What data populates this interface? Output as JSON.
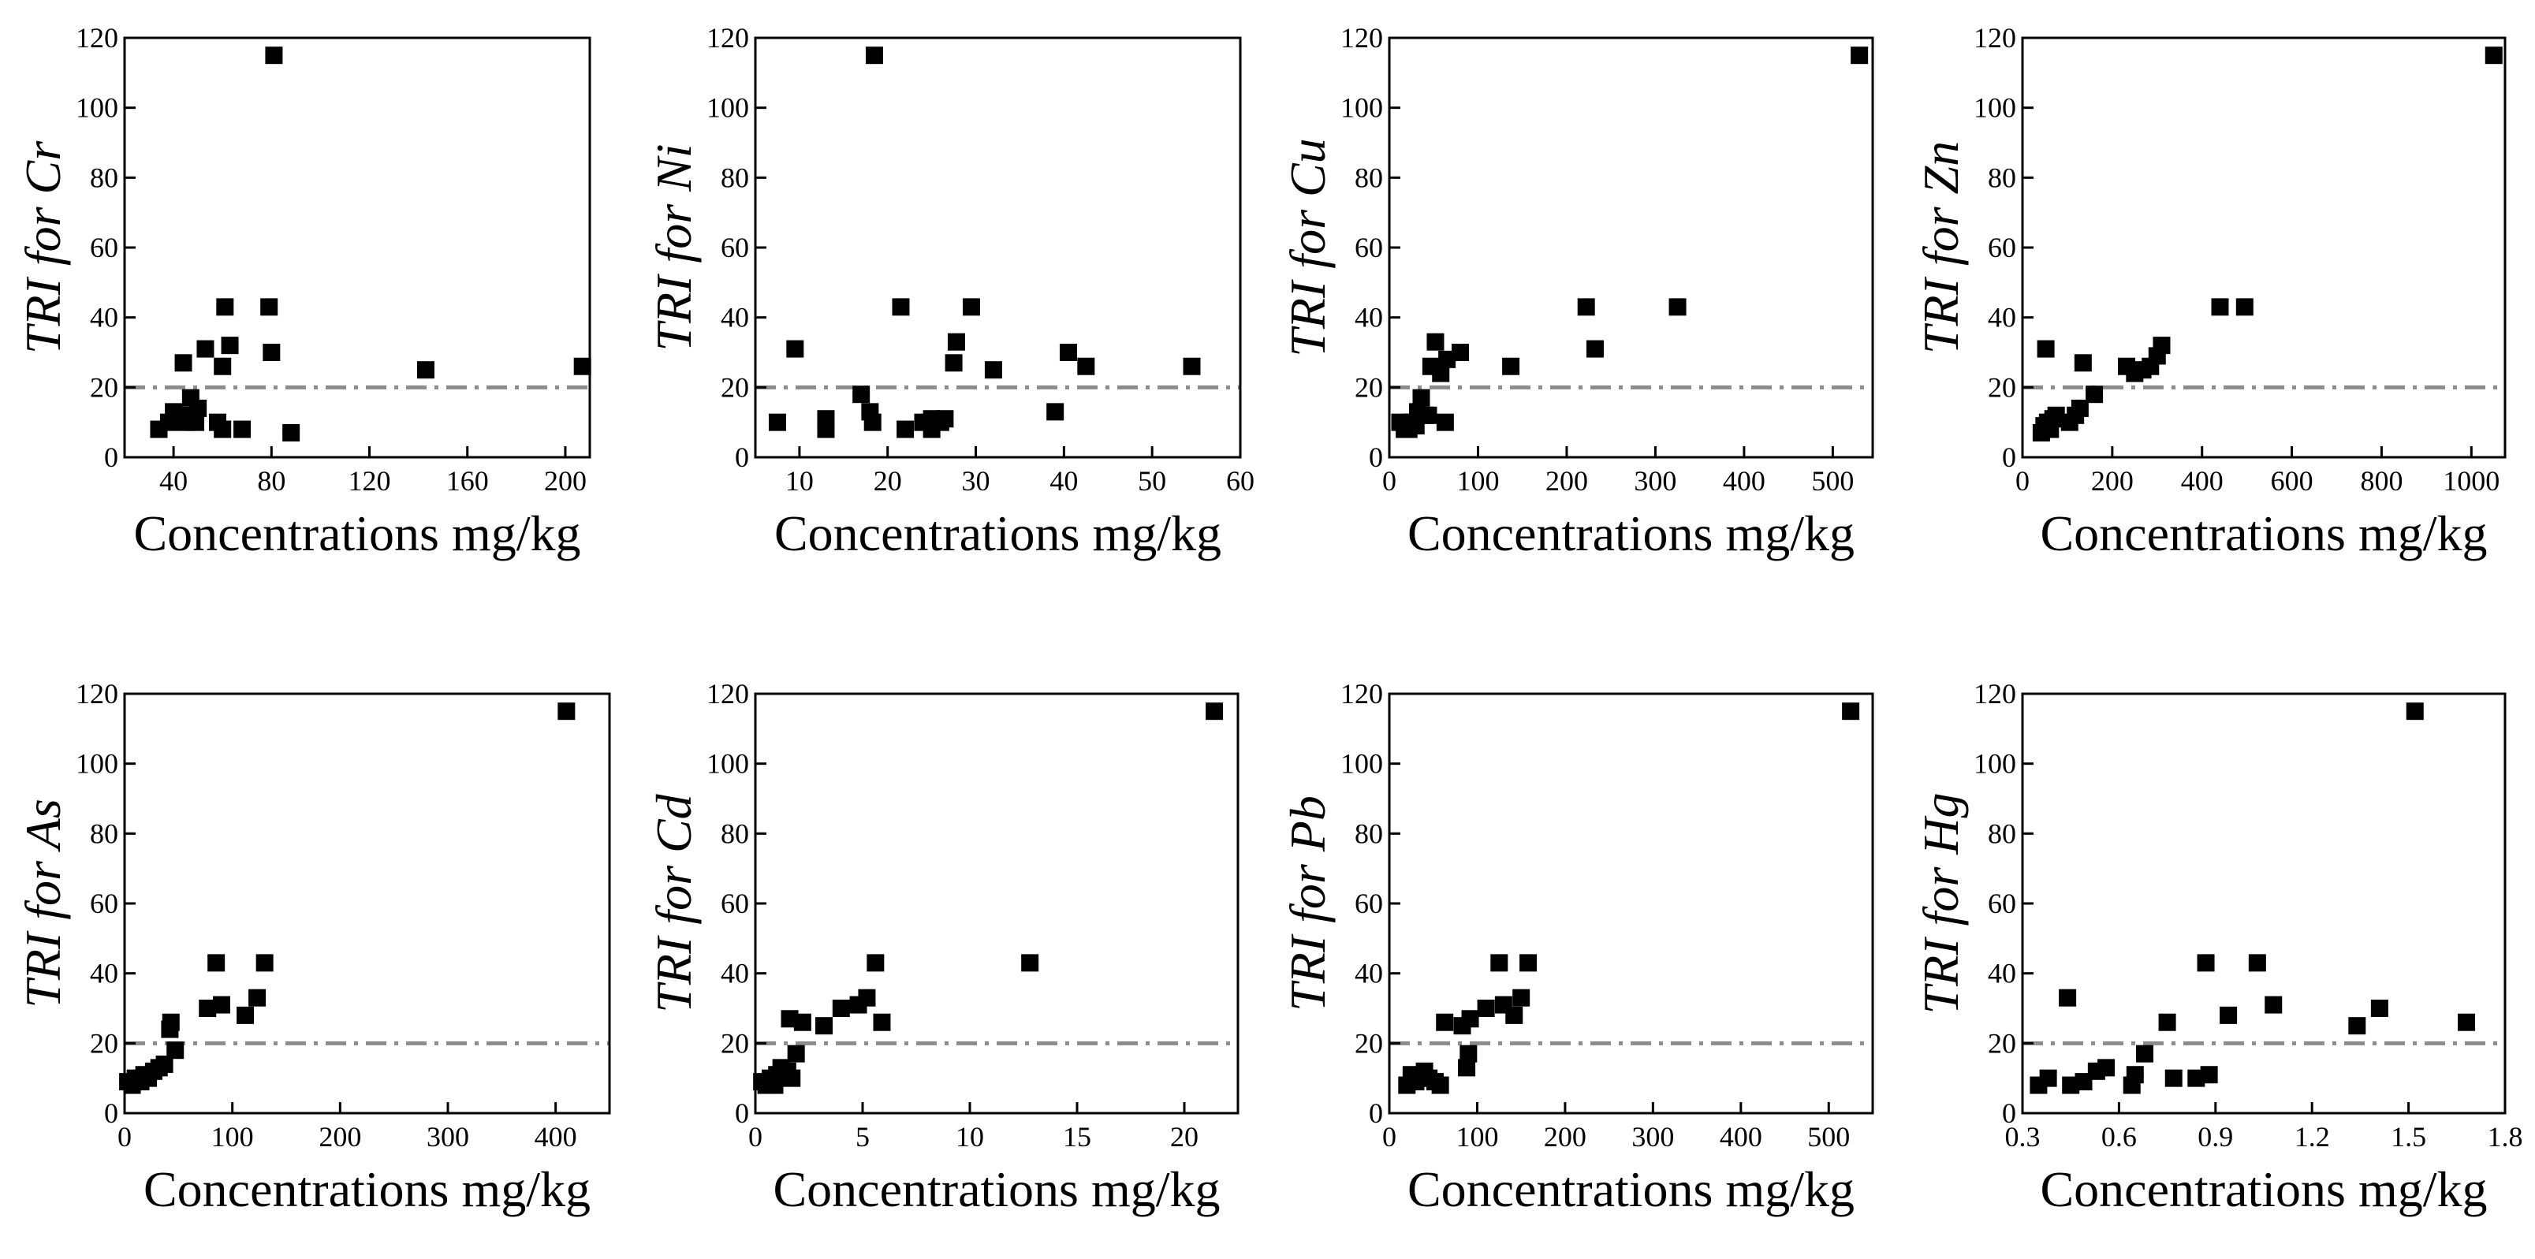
{
  "chart_data": [
    {
      "type": "scatter",
      "title": "",
      "xlabel": "Concentrations mg/kg",
      "ylabel": "TRI for Cr",
      "xlim": [
        20,
        210
      ],
      "xticks": [
        "40",
        "80",
        "120",
        "160",
        "200"
      ],
      "ylim": [
        0,
        120
      ],
      "yticks": [
        "0",
        "20",
        "40",
        "60",
        "80",
        "100",
        "120"
      ],
      "threshold": 20,
      "points": [
        [
          34,
          8
        ],
        [
          38,
          10
        ],
        [
          40,
          13
        ],
        [
          42,
          11
        ],
        [
          44,
          27
        ],
        [
          45,
          10
        ],
        [
          46,
          12
        ],
        [
          47,
          17
        ],
        [
          49,
          10
        ],
        [
          50,
          14
        ],
        [
          53,
          31
        ],
        [
          58,
          10
        ],
        [
          60,
          8
        ],
        [
          60,
          26
        ],
        [
          61,
          43
        ],
        [
          63,
          32
        ],
        [
          68,
          8
        ],
        [
          79,
          43
        ],
        [
          80,
          30
        ],
        [
          81,
          115
        ],
        [
          88,
          7
        ],
        [
          143,
          25
        ],
        [
          207,
          26
        ]
      ]
    },
    {
      "type": "scatter",
      "title": "",
      "xlabel": "Concentrations mg/kg",
      "ylabel": "TRI for Ni",
      "xlim": [
        5,
        60
      ],
      "xticks": [
        "10",
        "20",
        "30",
        "40",
        "50",
        "60"
      ],
      "ylim": [
        0,
        120
      ],
      "yticks": [
        "0",
        "20",
        "40",
        "60",
        "80",
        "100",
        "120"
      ],
      "threshold": 20,
      "points": [
        [
          7.5,
          10
        ],
        [
          9.5,
          31
        ],
        [
          13,
          8
        ],
        [
          13,
          11
        ],
        [
          17,
          18
        ],
        [
          18,
          13
        ],
        [
          18.3,
          10
        ],
        [
          18.5,
          115
        ],
        [
          21.5,
          43
        ],
        [
          22,
          8
        ],
        [
          24,
          10
        ],
        [
          25,
          8
        ],
        [
          25,
          11
        ],
        [
          26,
          10
        ],
        [
          26.5,
          11
        ],
        [
          27.5,
          27
        ],
        [
          27.8,
          33
        ],
        [
          29.5,
          43
        ],
        [
          32,
          25
        ],
        [
          39,
          13
        ],
        [
          40.5,
          30
        ],
        [
          42.5,
          26
        ],
        [
          54.5,
          26
        ]
      ]
    },
    {
      "type": "scatter",
      "title": "",
      "xlabel": "Concentrations mg/kg",
      "ylabel": "TRI for Cu",
      "xlim": [
        0,
        545
      ],
      "xticks": [
        "0",
        "100",
        "200",
        "300",
        "400",
        "500"
      ],
      "ylim": [
        0,
        120
      ],
      "yticks": [
        "0",
        "20",
        "40",
        "60",
        "80",
        "100",
        "120"
      ],
      "threshold": 20,
      "points": [
        [
          12,
          10
        ],
        [
          17,
          8
        ],
        [
          22,
          8
        ],
        [
          26,
          10
        ],
        [
          30,
          9
        ],
        [
          32,
          13
        ],
        [
          36,
          17
        ],
        [
          40,
          12
        ],
        [
          44,
          12
        ],
        [
          47,
          26
        ],
        [
          52,
          33
        ],
        [
          58,
          24
        ],
        [
          63,
          10
        ],
        [
          65,
          28
        ],
        [
          80,
          30
        ],
        [
          137,
          26
        ],
        [
          222,
          43
        ],
        [
          232,
          31
        ],
        [
          325,
          43
        ],
        [
          530,
          115
        ]
      ]
    },
    {
      "type": "scatter",
      "title": "",
      "xlabel": "Concentrations mg/kg",
      "ylabel": "TRI for Zn",
      "xlim": [
        0,
        1075
      ],
      "xticks": [
        "0",
        "200",
        "400",
        "600",
        "800",
        "1000"
      ],
      "ylim": [
        0,
        120
      ],
      "yticks": [
        "0",
        "20",
        "40",
        "60",
        "80",
        "100",
        "120"
      ],
      "threshold": 20,
      "points": [
        [
          42,
          7
        ],
        [
          48,
          9
        ],
        [
          52,
          31
        ],
        [
          56,
          10
        ],
        [
          62,
          8
        ],
        [
          68,
          11
        ],
        [
          75,
          12
        ],
        [
          105,
          10
        ],
        [
          118,
          12
        ],
        [
          128,
          14
        ],
        [
          135,
          27
        ],
        [
          160,
          18
        ],
        [
          232,
          26
        ],
        [
          250,
          24
        ],
        [
          268,
          25
        ],
        [
          285,
          26
        ],
        [
          300,
          29
        ],
        [
          310,
          32
        ],
        [
          440,
          43
        ],
        [
          495,
          43
        ],
        [
          1050,
          115
        ]
      ]
    },
    {
      "type": "scatter",
      "title": "",
      "xlabel": "Concentrations mg/kg",
      "ylabel": "TRI for As",
      "xlim": [
        0,
        450
      ],
      "xticks": [
        "0",
        "100",
        "200",
        "300",
        "400"
      ],
      "ylim": [
        0,
        120
      ],
      "yticks": [
        "0",
        "20",
        "40",
        "60",
        "80",
        "100",
        "120"
      ],
      "threshold": 20,
      "points": [
        [
          3,
          9
        ],
        [
          7,
          8
        ],
        [
          10,
          10
        ],
        [
          15,
          9
        ],
        [
          18,
          11
        ],
        [
          22,
          10
        ],
        [
          27,
          12
        ],
        [
          32,
          13
        ],
        [
          37,
          14
        ],
        [
          42,
          24
        ],
        [
          43,
          26
        ],
        [
          47,
          18
        ],
        [
          77,
          30
        ],
        [
          85,
          43
        ],
        [
          90,
          31
        ],
        [
          112,
          28
        ],
        [
          123,
          33
        ],
        [
          130,
          43
        ],
        [
          410,
          115
        ]
      ]
    },
    {
      "type": "scatter",
      "title": "",
      "xlabel": "Concentrations mg/kg",
      "ylabel": "TRI for Cd",
      "xlim": [
        0,
        22.5
      ],
      "xticks": [
        "0",
        "5",
        "10",
        "15",
        "20"
      ],
      "ylim": [
        0,
        120
      ],
      "yticks": [
        "0",
        "20",
        "40",
        "60",
        "80",
        "100",
        "120"
      ],
      "threshold": 20,
      "points": [
        [
          0.3,
          9
        ],
        [
          0.5,
          8
        ],
        [
          0.7,
          10
        ],
        [
          0.9,
          8
        ],
        [
          1.0,
          11
        ],
        [
          1.2,
          13
        ],
        [
          1.5,
          12
        ],
        [
          1.6,
          27
        ],
        [
          1.7,
          10
        ],
        [
          1.9,
          17
        ],
        [
          2.2,
          26
        ],
        [
          3.2,
          25
        ],
        [
          4.0,
          30
        ],
        [
          4.8,
          31
        ],
        [
          5.2,
          33
        ],
        [
          5.6,
          43
        ],
        [
          5.9,
          26
        ],
        [
          12.8,
          43
        ],
        [
          21.4,
          115
        ]
      ]
    },
    {
      "type": "scatter",
      "title": "",
      "xlabel": "Concentrations mg/kg",
      "ylabel": "TRI for Pb",
      "xlim": [
        0,
        550
      ],
      "xticks": [
        "0",
        "100",
        "200",
        "300",
        "400",
        "500"
      ],
      "ylim": [
        0,
        120
      ],
      "yticks": [
        "0",
        "20",
        "40",
        "60",
        "80",
        "100",
        "120"
      ],
      "threshold": 20,
      "points": [
        [
          20,
          8
        ],
        [
          25,
          11
        ],
        [
          30,
          9
        ],
        [
          35,
          10
        ],
        [
          40,
          12
        ],
        [
          45,
          10
        ],
        [
          52,
          9
        ],
        [
          58,
          8
        ],
        [
          63,
          26
        ],
        [
          83,
          25
        ],
        [
          88,
          13
        ],
        [
          90,
          17
        ],
        [
          92,
          27
        ],
        [
          110,
          30
        ],
        [
          125,
          43
        ],
        [
          130,
          31
        ],
        [
          142,
          28
        ],
        [
          150,
          33
        ],
        [
          158,
          43
        ],
        [
          525,
          115
        ]
      ]
    },
    {
      "type": "scatter",
      "title": "",
      "xlabel": "Concentrations mg/kg",
      "ylabel": "TRI for Hg",
      "xlim": [
        0.3,
        1.8
      ],
      "xticks": [
        "0.3",
        "0.6",
        "0.9",
        "1.2",
        "1.5",
        "1.8"
      ],
      "ylim": [
        0,
        120
      ],
      "yticks": [
        "0",
        "20",
        "40",
        "60",
        "80",
        "100",
        "120"
      ],
      "threshold": 20,
      "points": [
        [
          0.35,
          8
        ],
        [
          0.38,
          10
        ],
        [
          0.44,
          33
        ],
        [
          0.45,
          8
        ],
        [
          0.49,
          9
        ],
        [
          0.53,
          12
        ],
        [
          0.56,
          13
        ],
        [
          0.64,
          8
        ],
        [
          0.65,
          11
        ],
        [
          0.68,
          17
        ],
        [
          0.75,
          26
        ],
        [
          0.77,
          10
        ],
        [
          0.84,
          10
        ],
        [
          0.87,
          43
        ],
        [
          0.88,
          11
        ],
        [
          0.94,
          28
        ],
        [
          1.03,
          43
        ],
        [
          1.08,
          31
        ],
        [
          1.34,
          25
        ],
        [
          1.41,
          30
        ],
        [
          1.52,
          115
        ],
        [
          1.68,
          26
        ]
      ]
    }
  ]
}
